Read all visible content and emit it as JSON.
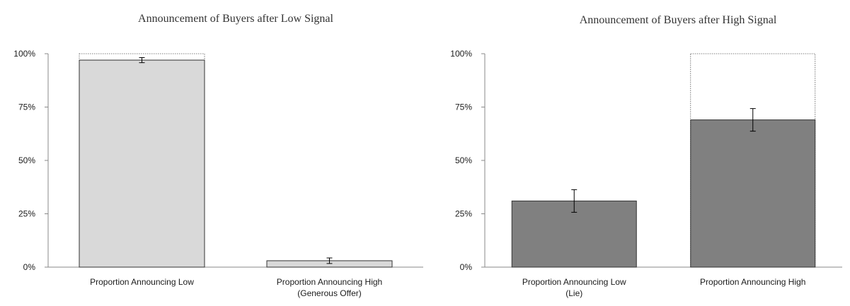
{
  "chart_data": [
    {
      "type": "bar",
      "title": "Announcement of Buyers after Low Signal",
      "categories": [
        [
          "Proportion Announcing Low"
        ],
        [
          "Proportion Announcing High",
          "(Generous Offer)"
        ]
      ],
      "values": [
        0.97,
        0.03
      ],
      "error": [
        0.012,
        0.013
      ],
      "reference": [
        1.0,
        null
      ],
      "yticks": [
        "0%",
        "25%",
        "50%",
        "75%",
        "100%"
      ],
      "ylim": [
        0,
        1
      ],
      "colors": {
        "fill": "#d9d9d9",
        "stroke": "#333333"
      }
    },
    {
      "type": "bar",
      "title": "Announcement of Buyers after High Signal",
      "categories": [
        [
          "Proportion Announcing Low",
          "(Lie)"
        ],
        [
          "Proportion Announcing High"
        ]
      ],
      "values": [
        0.31,
        0.69
      ],
      "error": [
        0.053,
        0.053
      ],
      "reference": [
        null,
        1.0
      ],
      "yticks": [
        "0%",
        "25%",
        "50%",
        "75%",
        "100%"
      ],
      "ylim": [
        0,
        1
      ],
      "colors": {
        "fill": "#808080",
        "stroke": "#333333"
      }
    }
  ]
}
